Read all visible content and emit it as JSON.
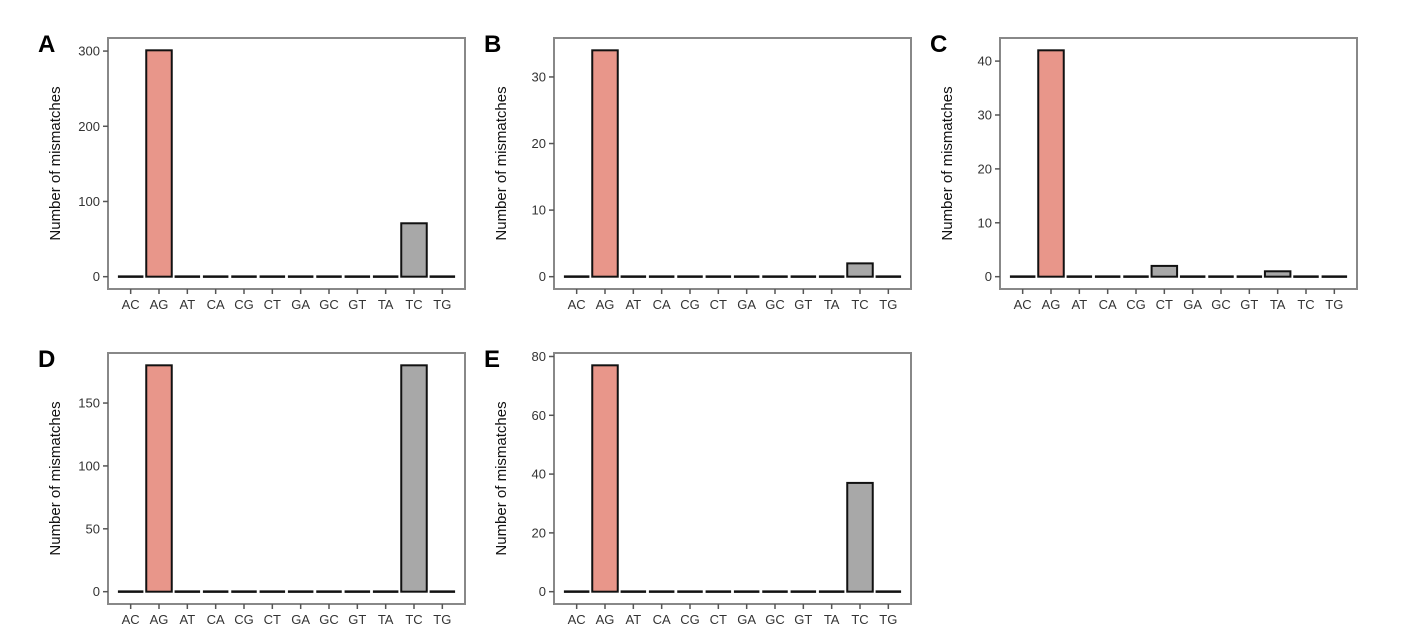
{
  "chart_data": [
    {
      "panel": "A",
      "type": "bar",
      "categories": [
        "AC",
        "AG",
        "AT",
        "CA",
        "CG",
        "CT",
        "GA",
        "GC",
        "GT",
        "TA",
        "TC",
        "TG"
      ],
      "values": [
        0,
        301,
        0,
        0,
        0,
        0,
        0,
        0,
        0,
        0,
        71,
        0
      ],
      "ylabel": "Number of mismatches",
      "xlabel": "",
      "yticks": [
        0,
        100,
        200,
        300
      ],
      "ylim": [
        0,
        301
      ],
      "grid": false,
      "legend": "none"
    },
    {
      "panel": "B",
      "type": "bar",
      "categories": [
        "AC",
        "AG",
        "AT",
        "CA",
        "CG",
        "CT",
        "GA",
        "GC",
        "GT",
        "TA",
        "TC",
        "TG"
      ],
      "values": [
        0,
        34,
        0,
        0,
        0,
        0,
        0,
        0,
        0,
        0,
        2,
        0
      ],
      "ylabel": "Number of mismatches",
      "xlabel": "",
      "yticks": [
        0,
        10,
        20,
        30
      ],
      "ylim": [
        0,
        34
      ],
      "grid": false,
      "legend": "none"
    },
    {
      "panel": "C",
      "type": "bar",
      "categories": [
        "AC",
        "AG",
        "AT",
        "CA",
        "CG",
        "CT",
        "GA",
        "GC",
        "GT",
        "TA",
        "TC",
        "TG"
      ],
      "values": [
        0,
        42,
        0,
        0,
        0,
        2,
        0,
        0,
        0,
        1,
        0,
        0
      ],
      "ylabel": "Number of mismatches",
      "xlabel": "",
      "yticks": [
        0,
        10,
        20,
        30,
        40
      ],
      "ylim": [
        0,
        42
      ],
      "grid": false,
      "legend": "none"
    },
    {
      "panel": "D",
      "type": "bar",
      "categories": [
        "AC",
        "AG",
        "AT",
        "CA",
        "CG",
        "CT",
        "GA",
        "GC",
        "GT",
        "TA",
        "TC",
        "TG"
      ],
      "values": [
        0,
        180,
        0,
        0,
        0,
        0,
        0,
        0,
        0,
        0,
        180,
        0
      ],
      "ylabel": "Number of mismatches",
      "xlabel": "",
      "yticks": [
        0,
        50,
        100,
        150
      ],
      "ylim": [
        0,
        180
      ],
      "grid": false,
      "legend": "none"
    },
    {
      "panel": "E",
      "type": "bar",
      "categories": [
        "AC",
        "AG",
        "AT",
        "CA",
        "CG",
        "CT",
        "GA",
        "GC",
        "GT",
        "TA",
        "TC",
        "TG"
      ],
      "values": [
        0,
        77,
        0,
        0,
        0,
        0,
        0,
        0,
        0,
        0,
        37,
        0
      ],
      "ylabel": "Number of mismatches",
      "xlabel": "",
      "yticks": [
        0,
        20,
        40,
        60,
        80
      ],
      "ylim": [
        0,
        77
      ],
      "grid": false,
      "legend": "none"
    }
  ],
  "colors": {
    "highlight_bar": "#E8968A",
    "other_bar": "#A8A8A8",
    "bar_outline": "#111111",
    "panel_border": "#888888"
  },
  "highlight_category": "AG"
}
